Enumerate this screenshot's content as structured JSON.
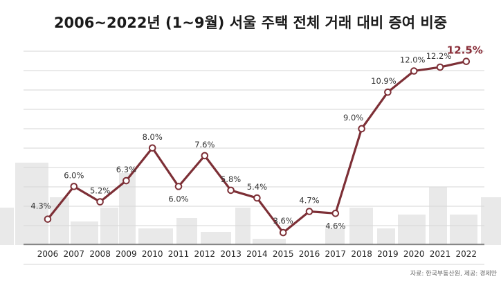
{
  "chart_data": {
    "type": "line",
    "title": "2006~2022년 (1~9월) 서울 주택 전체 거래 대비 증여 비중",
    "categories": [
      "2006",
      "2007",
      "2008",
      "2009",
      "2010",
      "2011",
      "2012",
      "2013",
      "2014",
      "2015",
      "2016",
      "2017",
      "2018",
      "2019",
      "2020",
      "2021",
      "2022"
    ],
    "values": [
      4.3,
      6.0,
      5.2,
      6.3,
      8.0,
      6.0,
      7.6,
      5.8,
      5.4,
      3.6,
      4.7,
      4.6,
      9.0,
      10.9,
      12.0,
      12.2,
      12.5
    ],
    "labels": [
      "4.3%",
      "6.0%",
      "5.2%",
      "6.3%",
      "8.0%",
      "6.0%",
      "7.6%",
      "5.8%",
      "5.4%",
      "3.6%",
      "4.7%",
      "4.6%",
      "9.0%",
      "10.9%",
      "12.0%",
      "12.2%",
      "12.5%"
    ],
    "ylim": [
      2.2,
      14.0
    ],
    "grid": true,
    "line_color": "#7d2f36",
    "highlight_color": "#8a2f3a",
    "source": "자료: 한국부동산원, 제공: 경제만"
  }
}
